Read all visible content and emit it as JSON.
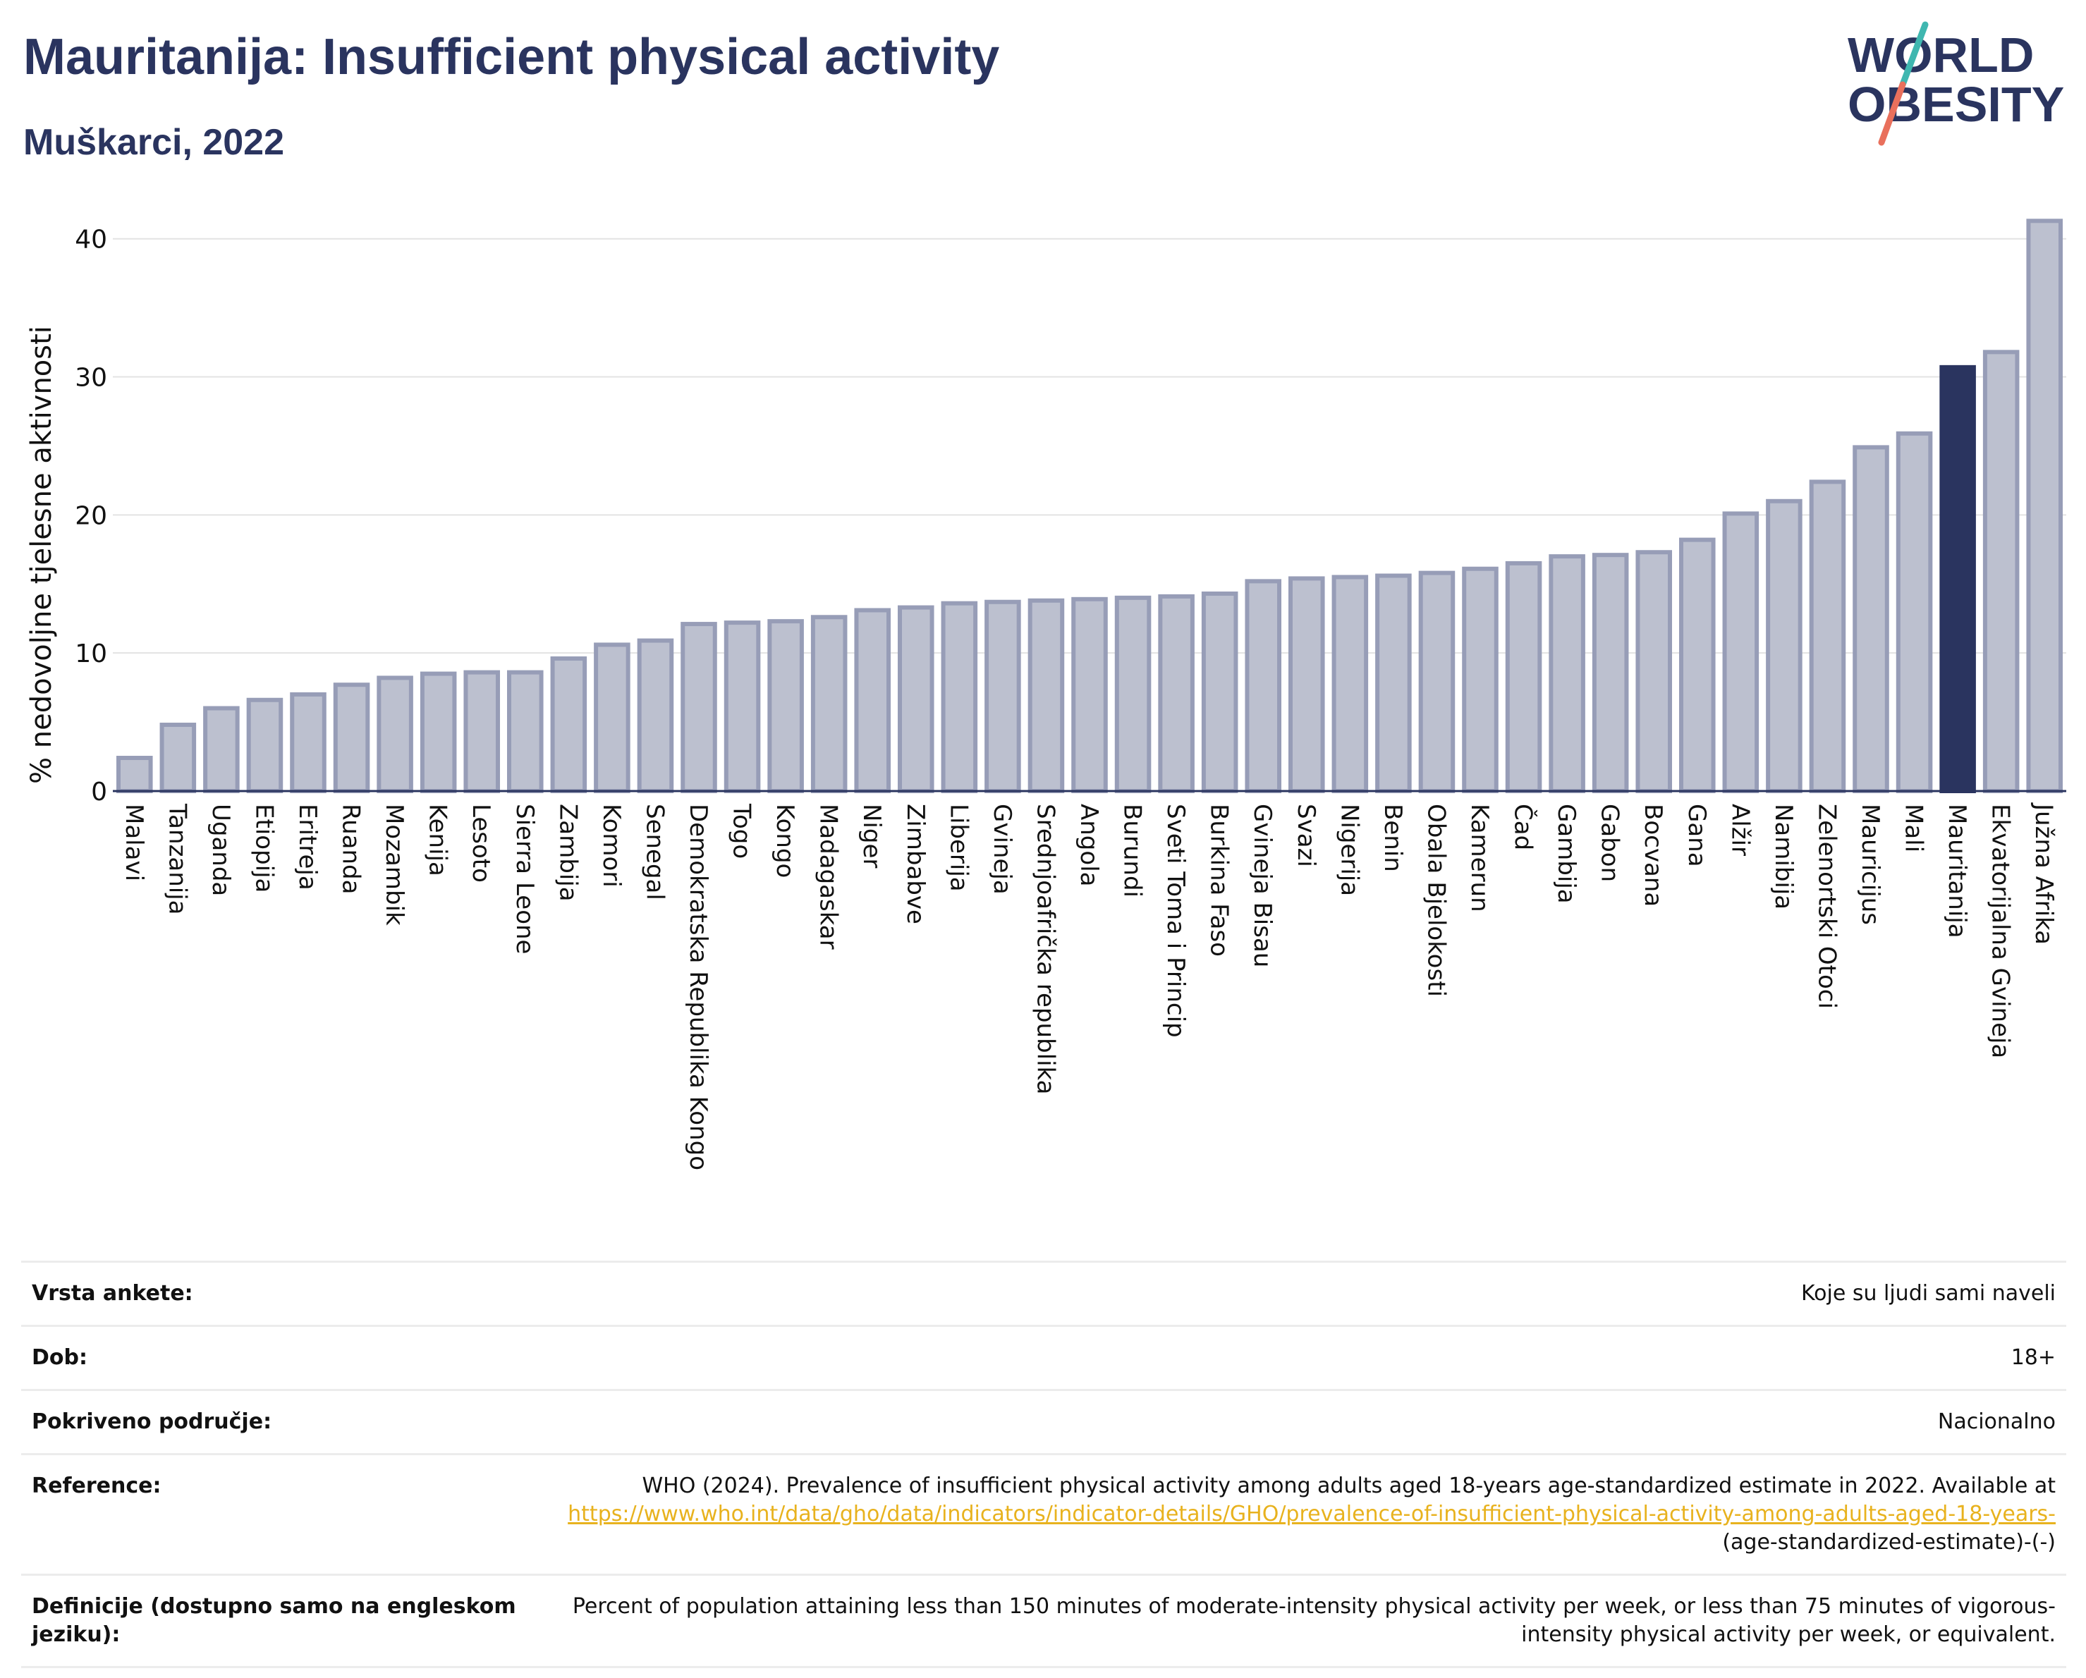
{
  "header": {
    "title": "Mauritanija: Insufficient physical activity",
    "subtitle": "Muškarci, 2022"
  },
  "logo": {
    "line1": "WORLD",
    "line2": "OBESITY"
  },
  "colors": {
    "title": "#2a345f",
    "bar": "#bcc0cf",
    "bar_stroke": "#979db7",
    "highlight": "#2a345f",
    "link": "#e8b21e"
  },
  "chart_data": {
    "type": "bar",
    "ylabel": "% nedovoljne tjelesne aktivnosti",
    "ylim": [
      0,
      43
    ],
    "yticks": [
      0,
      10,
      20,
      30,
      40
    ],
    "grid": true,
    "highlight": "Mauritanija",
    "categories": [
      "Malavi",
      "Tanzanija",
      "Uganda",
      "Etiopija",
      "Eritreja",
      "Ruanda",
      "Mozambik",
      "Kenija",
      "Lesoto",
      "Sierra Leone",
      "Zambija",
      "Komori",
      "Senegal",
      "Demokratska Republika Kongo",
      "Togo",
      "Kongo",
      "Madagaskar",
      "Niger",
      "Zimbabve",
      "Liberija",
      "Gvineja",
      "Srednjoafrička republika",
      "Angola",
      "Burundi",
      "Sveti Toma i Princip",
      "Burkina Faso",
      "Gvineja Bisau",
      "Svazi",
      "Nigerija",
      "Benin",
      "Obala Bjelokosti",
      "Kamerun",
      "Čad",
      "Gambija",
      "Gabon",
      "Bocvana",
      "Gana",
      "Alžir",
      "Namibija",
      "Zelenortski Otoci",
      "Mauricijus",
      "Mali",
      "Mauritanija",
      "Ekvatorijalna Gvineja",
      "Južna Afrika"
    ],
    "values": [
      2.4,
      4.8,
      6.0,
      6.6,
      7.0,
      7.7,
      8.2,
      8.5,
      8.6,
      8.6,
      9.6,
      10.6,
      10.9,
      12.1,
      12.2,
      12.3,
      12.6,
      13.1,
      13.3,
      13.6,
      13.7,
      13.8,
      13.9,
      14.0,
      14.1,
      14.3,
      15.2,
      15.4,
      15.5,
      15.6,
      15.8,
      16.1,
      16.5,
      17.0,
      17.1,
      17.3,
      18.2,
      20.1,
      21.0,
      22.4,
      24.9,
      25.9,
      30.7,
      31.8,
      41.3
    ]
  },
  "info": [
    {
      "label": "Vrsta ankete:",
      "value": "Koje su ljudi sami naveli"
    },
    {
      "label": "Dob:",
      "value": "18+"
    },
    {
      "label": "Pokriveno područje:",
      "value": "Nacionalno"
    },
    {
      "label": "Reference:",
      "value_pre": "WHO (2024). Prevalence of insufficient physical activity among adults aged 18-years age-standardized estimate in 2022. Available at",
      "link": "https://www.who.int/data/gho/data/indicators/indicator-details/GHO/prevalence-of-insufficient-physical-activity-among-adults-aged-18-years-",
      "value_post": "(age-standardized-estimate)-(-)"
    },
    {
      "label": "Definicije (dostupno samo na engleskom jeziku):",
      "value": "Percent of population attaining less than 150 minutes of moderate-intensity physical activity per week, or less than 75 minutes of vigorous-intensity physical activity per week, or equivalent."
    }
  ]
}
